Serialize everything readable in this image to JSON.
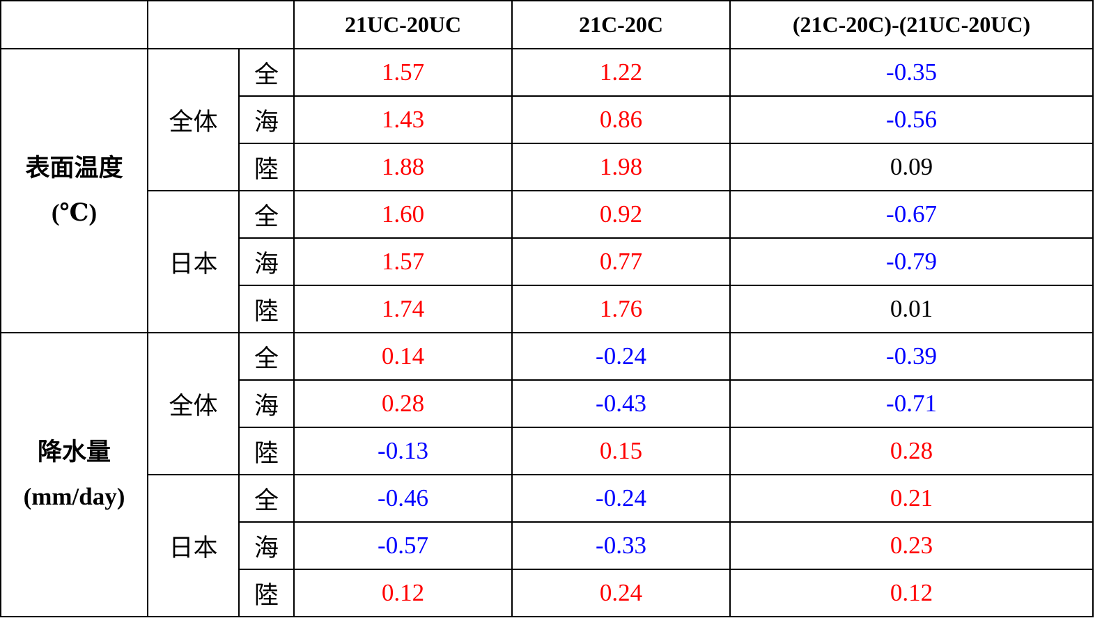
{
  "header": [
    "21UC-20UC",
    "21C-20C",
    "(21C-20C)-(21UC-20UC)"
  ],
  "sections": [
    {
      "label_lines": [
        "表面温度",
        "(℃)"
      ],
      "groups": [
        {
          "label": "全体",
          "rows": [
            {
              "sub": "全",
              "values": [
                "1.57",
                "1.22",
                "-0.35"
              ],
              "colors": [
                "#ff0000",
                "#ff0000",
                "#0000ff"
              ]
            },
            {
              "sub": "海",
              "values": [
                "1.43",
                "0.86",
                "-0.56"
              ],
              "colors": [
                "#ff0000",
                "#ff0000",
                "#0000ff"
              ]
            },
            {
              "sub": "陸",
              "values": [
                "1.88",
                "1.98",
                "0.09"
              ],
              "colors": [
                "#ff0000",
                "#ff0000",
                "#000000"
              ]
            }
          ]
        },
        {
          "label": "日本",
          "rows": [
            {
              "sub": "全",
              "values": [
                "1.60",
                "0.92",
                "-0.67"
              ],
              "colors": [
                "#ff0000",
                "#ff0000",
                "#0000ff"
              ]
            },
            {
              "sub": "海",
              "values": [
                "1.57",
                "0.77",
                "-0.79"
              ],
              "colors": [
                "#ff0000",
                "#ff0000",
                "#0000ff"
              ]
            },
            {
              "sub": "陸",
              "values": [
                "1.74",
                "1.76",
                "0.01"
              ],
              "colors": [
                "#ff0000",
                "#ff0000",
                "#000000"
              ]
            }
          ]
        }
      ]
    },
    {
      "label_lines": [
        "降水量",
        "(mm/day)"
      ],
      "groups": [
        {
          "label": "全体",
          "rows": [
            {
              "sub": "全",
              "values": [
                "0.14",
                "-0.24",
                "-0.39"
              ],
              "colors": [
                "#ff0000",
                "#0000ff",
                "#0000ff"
              ]
            },
            {
              "sub": "海",
              "values": [
                "0.28",
                "-0.43",
                "-0.71"
              ],
              "colors": [
                "#ff0000",
                "#0000ff",
                "#0000ff"
              ]
            },
            {
              "sub": "陸",
              "values": [
                "-0.13",
                "0.15",
                "0.28"
              ],
              "colors": [
                "#0000ff",
                "#ff0000",
                "#ff0000"
              ]
            }
          ]
        },
        {
          "label": "日本",
          "rows": [
            {
              "sub": "全",
              "values": [
                "-0.46",
                "-0.24",
                "0.21"
              ],
              "colors": [
                "#0000ff",
                "#0000ff",
                "#ff0000"
              ]
            },
            {
              "sub": "海",
              "values": [
                "-0.57",
                "-0.33",
                "0.23"
              ],
              "colors": [
                "#0000ff",
                "#0000ff",
                "#ff0000"
              ]
            },
            {
              "sub": "陸",
              "values": [
                "0.12",
                "0.24",
                "0.12"
              ],
              "colors": [
                "#ff0000",
                "#ff0000",
                "#ff0000"
              ]
            }
          ]
        }
      ]
    }
  ]
}
